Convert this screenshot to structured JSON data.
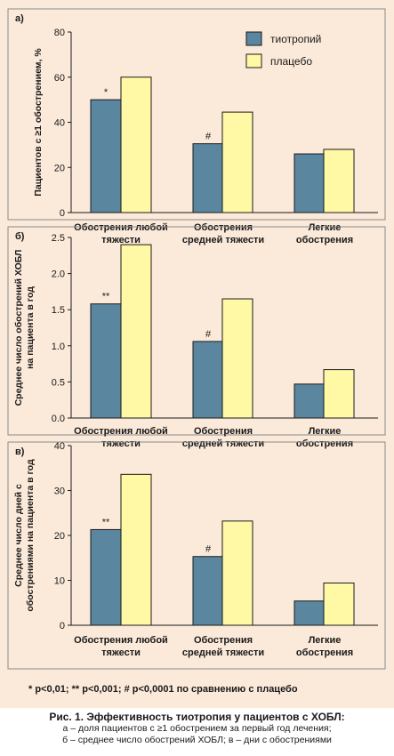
{
  "legend": {
    "items": [
      {
        "label": "тиотропий",
        "color": "#5b86a0"
      },
      {
        "label": "плацебо",
        "color": "#fff9a6"
      }
    ]
  },
  "footnote": "* p<0,01; ** p<0,001; # p<0,0001 по сравнению с плацебо",
  "caption": {
    "title": "Рис. 1. Эффективность тиотропия у пациентов с ХОБЛ:",
    "line1": "а – доля пациентов с ≥1 обострением за первый год лечения;",
    "line2": "б – среднее число обострений ХОБЛ; в – дни с обострениями"
  },
  "chart_data": [
    {
      "type": "bar",
      "panel": "а)",
      "ylabel": [
        "Пациентов с ≥1 обострением, %"
      ],
      "ylim": [
        0,
        80
      ],
      "yticks": [
        "0",
        "20",
        "40",
        "60",
        "80"
      ],
      "categories": [
        [
          "Обострения любой",
          "тяжести"
        ],
        [
          "Обострения",
          "средней тяжести"
        ],
        [
          "Легкие",
          "обострения"
        ]
      ],
      "series": [
        {
          "name": "тиотропий",
          "values": [
            50,
            30.5,
            26
          ]
        },
        {
          "name": "плацебо",
          "values": [
            60,
            44.5,
            28
          ]
        }
      ],
      "annotations": [
        "*",
        "#",
        ""
      ]
    },
    {
      "type": "bar",
      "panel": "б)",
      "ylabel": [
        "Среднее число обострений ХОБЛ",
        "на пациента в год"
      ],
      "ylim": [
        0,
        2.5
      ],
      "yticks": [
        "0.0",
        "0.5",
        "1.0",
        "1.5",
        "2.0",
        "2.5"
      ],
      "categories": [
        [
          "Обострения любой",
          "тяжести"
        ],
        [
          "Обострения",
          "средней тяжести"
        ],
        [
          "Легкие",
          "обострения"
        ]
      ],
      "series": [
        {
          "name": "тиотропий",
          "values": [
            1.58,
            1.06,
            0.47
          ]
        },
        {
          "name": "плацебо",
          "values": [
            2.4,
            1.65,
            0.67
          ]
        }
      ],
      "annotations": [
        "**",
        "#",
        ""
      ]
    },
    {
      "type": "bar",
      "panel": "в)",
      "ylabel": [
        "Среднее число дней с",
        "обострениями на пациента в год"
      ],
      "ylim": [
        0,
        40
      ],
      "yticks": [
        "0",
        "10",
        "20",
        "30",
        "40"
      ],
      "categories": [
        [
          "Обострения любой",
          "тяжести"
        ],
        [
          "Обострения",
          "средней тяжести"
        ],
        [
          "Легкие",
          "обострения"
        ]
      ],
      "series": [
        {
          "name": "тиотропий",
          "values": [
            21.3,
            15.3,
            5.4
          ]
        },
        {
          "name": "плацебо",
          "values": [
            33.6,
            23.2,
            9.4
          ]
        }
      ],
      "annotations": [
        "**",
        "#",
        ""
      ]
    }
  ]
}
